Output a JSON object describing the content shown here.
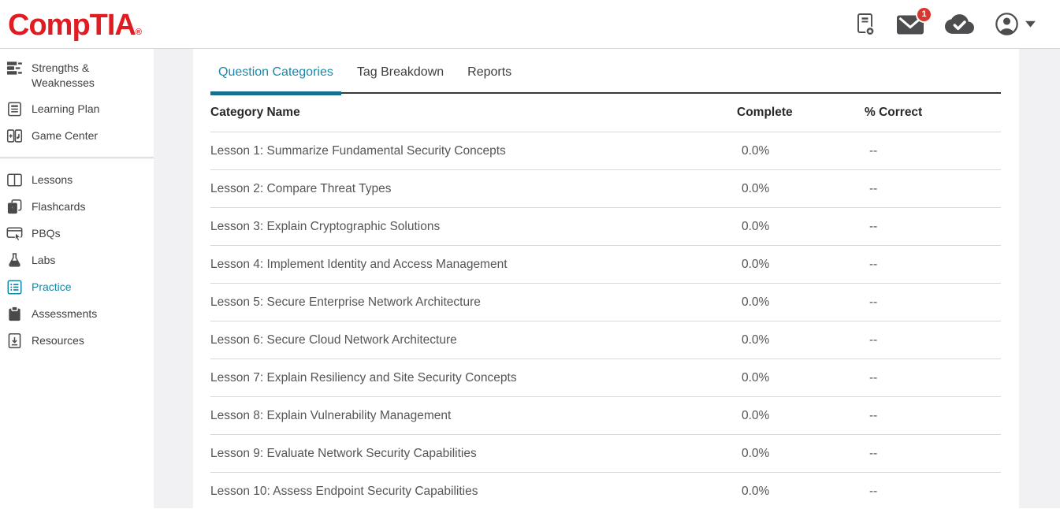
{
  "header": {
    "logo": "CompTIA",
    "registered_mark": "®",
    "icons": [
      {
        "name": "score-report-icon"
      },
      {
        "name": "messages-icon",
        "badge": "1"
      },
      {
        "name": "sync-cloud-icon"
      },
      {
        "name": "account-icon"
      }
    ]
  },
  "sidebar": {
    "groups": [
      {
        "items": [
          {
            "label": "Strengths & Weaknesses",
            "icon": "strengths-icon",
            "active": false
          },
          {
            "label": "Learning Plan",
            "icon": "learning-plan-icon",
            "active": false
          },
          {
            "label": "Game Center",
            "icon": "game-center-icon",
            "active": false
          }
        ]
      },
      {
        "items": [
          {
            "label": "Lessons",
            "icon": "lessons-icon",
            "active": false
          },
          {
            "label": "Flashcards",
            "icon": "flashcards-icon",
            "active": false
          },
          {
            "label": "PBQs",
            "icon": "pbqs-icon",
            "active": false
          },
          {
            "label": "Labs",
            "icon": "labs-icon",
            "active": false
          },
          {
            "label": "Practice",
            "icon": "practice-icon",
            "active": true
          },
          {
            "label": "Assessments",
            "icon": "assessments-icon",
            "active": false
          },
          {
            "label": "Resources",
            "icon": "resources-icon",
            "active": false
          }
        ]
      }
    ]
  },
  "main": {
    "tabs": [
      {
        "label": "Question Categories",
        "active": true
      },
      {
        "label": "Tag Breakdown",
        "active": false
      },
      {
        "label": "Reports",
        "active": false
      }
    ],
    "table": {
      "columns": [
        "Category Name",
        "Complete",
        "% Correct"
      ],
      "rows": [
        {
          "category": "Lesson 1: Summarize Fundamental Security Concepts",
          "complete": "0.0%",
          "percent_correct": "--"
        },
        {
          "category": "Lesson 2: Compare Threat Types",
          "complete": "0.0%",
          "percent_correct": "--"
        },
        {
          "category": "Lesson 3: Explain Cryptographic Solutions",
          "complete": "0.0%",
          "percent_correct": "--"
        },
        {
          "category": "Lesson 4: Implement Identity and Access Management",
          "complete": "0.0%",
          "percent_correct": "--"
        },
        {
          "category": "Lesson 5: Secure Enterprise Network Architecture",
          "complete": "0.0%",
          "percent_correct": "--"
        },
        {
          "category": "Lesson 6: Secure Cloud Network Architecture",
          "complete": "0.0%",
          "percent_correct": "--"
        },
        {
          "category": "Lesson 7: Explain Resiliency and Site Security Concepts",
          "complete": "0.0%",
          "percent_correct": "--"
        },
        {
          "category": "Lesson 8: Explain Vulnerability Management",
          "complete": "0.0%",
          "percent_correct": "--"
        },
        {
          "category": "Lesson 9: Evaluate Network Security Capabilities",
          "complete": "0.0%",
          "percent_correct": "--"
        },
        {
          "category": "Lesson 10: Assess Endpoint Security Capabilities",
          "complete": "0.0%",
          "percent_correct": "--"
        }
      ]
    }
  },
  "colors": {
    "brand_red": "#e11b22",
    "accent_teal": "#1287a8",
    "tab_underline": "#14718e",
    "badge_red": "#d9362e",
    "icon_gray": "#4d4d4f"
  }
}
